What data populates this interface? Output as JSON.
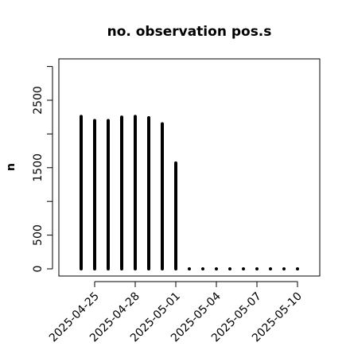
{
  "chart_data": {
    "type": "bar",
    "title": "no. observation pos.s",
    "xlabel": "",
    "ylabel": "n",
    "x": [
      "2025-04-24",
      "2025-04-25",
      "2025-04-26",
      "2025-04-27",
      "2025-04-28",
      "2025-04-29",
      "2025-04-30",
      "2025-05-01",
      "2025-05-02",
      "2025-05-03",
      "2025-05-04",
      "2025-05-05",
      "2025-05-06",
      "2025-05-07",
      "2025-05-08",
      "2025-05-09",
      "2025-05-10"
    ],
    "values": [
      2260,
      2200,
      2200,
      2250,
      2260,
      2240,
      2150,
      1570,
      0,
      0,
      0,
      0,
      0,
      0,
      0,
      0,
      0
    ],
    "ylim": [
      0,
      3000
    ],
    "yticks": [
      0,
      500,
      1500,
      2500
    ],
    "xticks": [
      {
        "label": "2025-04-25",
        "color": "#000000"
      },
      {
        "label": "2025-04-28",
        "color": "#000000"
      },
      {
        "label": "2025-05-01",
        "color": "#228B22"
      },
      {
        "label": "2025-05-04",
        "color": "#000000"
      },
      {
        "label": "2025-05-07",
        "color": "#000000"
      },
      {
        "label": "2025-05-10",
        "color": "#000000"
      }
    ],
    "grid": false,
    "bar_color": "#000000"
  }
}
